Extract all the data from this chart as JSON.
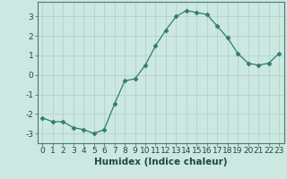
{
  "x": [
    0,
    1,
    2,
    3,
    4,
    5,
    6,
    7,
    8,
    9,
    10,
    11,
    12,
    13,
    14,
    15,
    16,
    17,
    18,
    19,
    20,
    21,
    22,
    23
  ],
  "y": [
    -2.2,
    -2.4,
    -2.4,
    -2.7,
    -2.8,
    -3.0,
    -2.8,
    -1.5,
    -0.3,
    -0.2,
    0.5,
    1.5,
    2.3,
    3.0,
    3.3,
    3.2,
    3.1,
    2.5,
    1.9,
    1.1,
    0.6,
    0.5,
    0.6,
    1.1
  ],
  "line_color": "#2e7d6e",
  "marker": "D",
  "marker_size": 2.5,
  "bg_color": "#cce8e0",
  "grid_color": "#aacfc8",
  "xlabel": "Humidex (Indice chaleur)",
  "xlim": [
    -0.5,
    23.5
  ],
  "ylim": [
    -3.5,
    3.75
  ],
  "yticks": [
    -3,
    -2,
    -1,
    0,
    1,
    2,
    3
  ],
  "xticks": [
    0,
    1,
    2,
    3,
    4,
    5,
    6,
    7,
    8,
    9,
    10,
    11,
    12,
    13,
    14,
    15,
    16,
    17,
    18,
    19,
    20,
    21,
    22,
    23
  ],
  "xtick_labels": [
    "0",
    "1",
    "2",
    "3",
    "4",
    "5",
    "6",
    "7",
    "8",
    "9",
    "10",
    "11",
    "12",
    "13",
    "14",
    "15",
    "16",
    "17",
    "18",
    "19",
    "20",
    "21",
    "22",
    "23"
  ],
  "xlabel_fontsize": 7.5,
  "tick_fontsize": 6.5,
  "spine_color": "#4a7a72",
  "tick_color": "#4a7a72",
  "label_color": "#1a4a42"
}
